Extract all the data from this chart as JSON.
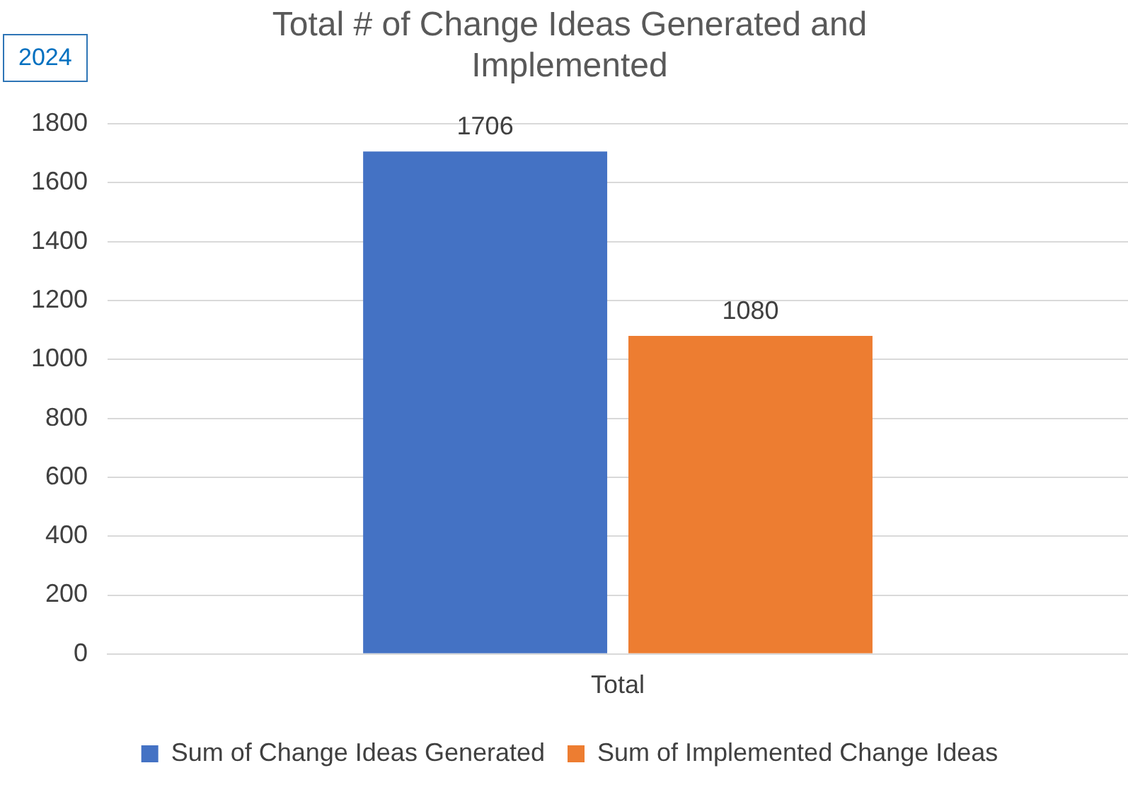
{
  "chart_data": {
    "type": "bar",
    "title": "Total # of Change Ideas Generated and Implemented",
    "categories": [
      "Total"
    ],
    "series": [
      {
        "name": "Sum of Change Ideas Generated",
        "color": "#4472c4",
        "values": [
          1706
        ]
      },
      {
        "name": "Sum of Implemented Change Ideas",
        "color": "#ed7d31",
        "values": [
          1080
        ]
      }
    ],
    "ylim": [
      0,
      1800
    ],
    "yticks": [
      0,
      200,
      400,
      600,
      800,
      1000,
      1200,
      1400,
      1600,
      1800
    ],
    "grid": "y",
    "legend": "bottom",
    "data_labels": true,
    "annotations": [
      "2024"
    ]
  }
}
